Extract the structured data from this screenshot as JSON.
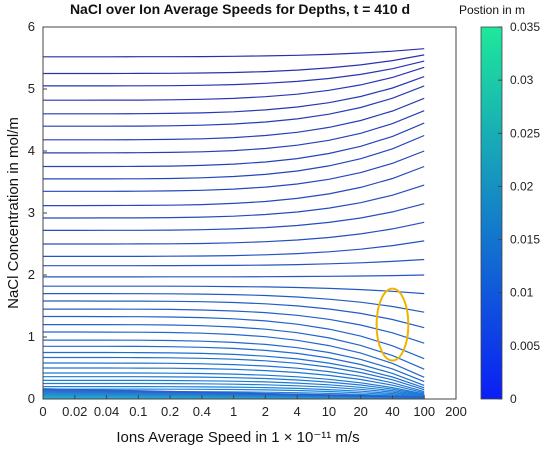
{
  "chart_data": {
    "type": "line",
    "title": "NaCl over Ion Average Speeds for Depths, t = 410 d",
    "xlabel": "Ions Average Speed in 1 × 10⁻¹¹ m/s",
    "ylabel": "NaCl Concentration in mol/m",
    "x_categories": [
      "0",
      "0.02",
      "0.04",
      "0.1",
      "0.2",
      "0.4",
      "1",
      "2",
      "4",
      "10",
      "20",
      "40",
      "100",
      "200"
    ],
    "ylim": [
      0,
      6
    ],
    "yticks": [
      "0",
      "1",
      "2",
      "3",
      "4",
      "5",
      "6"
    ],
    "grid": false,
    "colorbar": {
      "label": "Postion in m",
      "range": [
        0,
        0.035
      ],
      "ticks": [
        "0",
        "0.005",
        "0.01",
        "0.015",
        "0.02",
        "0.025",
        "0.03",
        "0.035"
      ],
      "color_low": "#0a1ef5",
      "color_high": "#1ee89a"
    },
    "line_color_start": "#2a2fb0",
    "line_color_end": "#1a8ee0",
    "series_start_values_at_x0": [
      5.52,
      5.25,
      5.05,
      4.82,
      4.6,
      4.4,
      4.18,
      3.97,
      3.75,
      3.55,
      3.35,
      3.12,
      2.92,
      2.72,
      2.5,
      2.3,
      2.15,
      1.97,
      1.82,
      1.7,
      1.58,
      1.45,
      1.33,
      1.2,
      1.08,
      0.95,
      0.85,
      0.75,
      0.67,
      0.58,
      0.5,
      0.42,
      0.36,
      0.3,
      0.25,
      0.2,
      0.16,
      0.12,
      0.09,
      0.06,
      0.04,
      0.02
    ],
    "series_end_values_at_x100": [
      5.65,
      5.55,
      5.45,
      5.35,
      5.2,
      5.05,
      4.85,
      4.65,
      4.45,
      4.25,
      4.0,
      3.75,
      3.45,
      3.15,
      2.85,
      2.55,
      2.25,
      2.0,
      1.7,
      1.4,
      1.15,
      0.9,
      0.65,
      0.48,
      0.35,
      0.28,
      0.22,
      0.18,
      0.15,
      0.12,
      0.1,
      0.08,
      0.07,
      0.06,
      0.05,
      0.04,
      0.03,
      0.02,
      0.015,
      0.01,
      0.005,
      0.002
    ],
    "annotation": {
      "shape": "ellipse",
      "color": "#f0b400",
      "center_x_category": "40",
      "center_y": 1.2,
      "half_height_y": 0.58
    }
  }
}
